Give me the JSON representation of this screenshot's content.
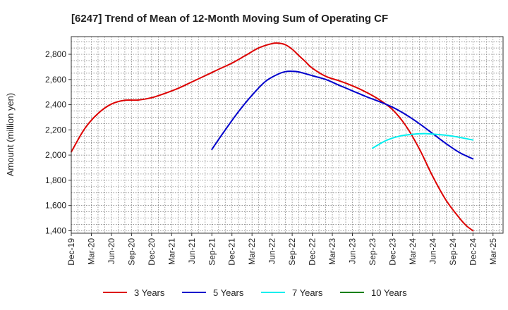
{
  "chart_data": {
    "type": "line",
    "title": "[6247]  Trend of Mean of 12-Month Moving Sum of Operating CF",
    "xlabel": "",
    "ylabel": "Amount (million yen)",
    "ylim": [
      1380,
      2940
    ],
    "yticks": [
      1400,
      1600,
      1800,
      2000,
      2200,
      2400,
      2600,
      2800
    ],
    "ytick_labels": [
      "1,400",
      "1,600",
      "1,800",
      "2,000",
      "2,200",
      "2,400",
      "2,600",
      "2,800"
    ],
    "categories": [
      "Dec-19",
      "Mar-20",
      "Jun-20",
      "Sep-20",
      "Dec-20",
      "Mar-21",
      "Jun-21",
      "Sep-21",
      "Dec-21",
      "Mar-22",
      "Jun-22",
      "Sep-22",
      "Dec-22",
      "Mar-23",
      "Jun-23",
      "Sep-23",
      "Dec-23",
      "Mar-24",
      "Jun-24",
      "Sep-24",
      "Dec-24",
      "Mar-25"
    ],
    "grid": true,
    "legend_position": "bottom",
    "series": [
      {
        "name": "3 Years",
        "color": "#dd0000",
        "points": [
          [
            0,
            2025
          ],
          [
            0.67,
            2210
          ],
          [
            1.33,
            2330
          ],
          [
            2,
            2405
          ],
          [
            2.67,
            2435
          ],
          [
            3.33,
            2437
          ],
          [
            4,
            2455
          ],
          [
            4.67,
            2490
          ],
          [
            5.33,
            2530
          ],
          [
            6,
            2580
          ],
          [
            6.67,
            2630
          ],
          [
            7.33,
            2680
          ],
          [
            8,
            2730
          ],
          [
            8.67,
            2790
          ],
          [
            9.33,
            2850
          ],
          [
            10,
            2885
          ],
          [
            10.33,
            2888
          ],
          [
            10.67,
            2875
          ],
          [
            11,
            2840
          ],
          [
            11.33,
            2790
          ],
          [
            11.67,
            2740
          ],
          [
            12,
            2690
          ],
          [
            12.67,
            2625
          ],
          [
            13.33,
            2590
          ],
          [
            14,
            2550
          ],
          [
            14.67,
            2500
          ],
          [
            15.33,
            2440
          ],
          [
            16,
            2360
          ],
          [
            16.67,
            2230
          ],
          [
            17.33,
            2050
          ],
          [
            18,
            1830
          ],
          [
            18.67,
            1640
          ],
          [
            19.33,
            1500
          ],
          [
            19.67,
            1440
          ],
          [
            20,
            1400
          ]
        ]
      },
      {
        "name": "5 Years",
        "color": "#0000cc",
        "points": [
          [
            7,
            2045
          ],
          [
            7.67,
            2200
          ],
          [
            8.33,
            2345
          ],
          [
            9,
            2475
          ],
          [
            9.67,
            2585
          ],
          [
            10.33,
            2645
          ],
          [
            10.67,
            2662
          ],
          [
            11,
            2665
          ],
          [
            11.33,
            2660
          ],
          [
            12,
            2630
          ],
          [
            12.67,
            2600
          ],
          [
            13.33,
            2555
          ],
          [
            14,
            2510
          ],
          [
            14.67,
            2465
          ],
          [
            15.33,
            2425
          ],
          [
            16,
            2380
          ],
          [
            16.67,
            2320
          ],
          [
            17.33,
            2250
          ],
          [
            18,
            2170
          ],
          [
            18.67,
            2090
          ],
          [
            19.33,
            2020
          ],
          [
            20,
            1970
          ]
        ]
      },
      {
        "name": "7 Years",
        "color": "#00eeee",
        "points": [
          [
            15,
            2055
          ],
          [
            15.67,
            2115
          ],
          [
            16.33,
            2150
          ],
          [
            17,
            2165
          ],
          [
            17.67,
            2170
          ],
          [
            18.33,
            2162
          ],
          [
            19,
            2150
          ],
          [
            20,
            2120
          ]
        ]
      },
      {
        "name": "10 Years",
        "color": "#008000",
        "points": []
      }
    ]
  }
}
